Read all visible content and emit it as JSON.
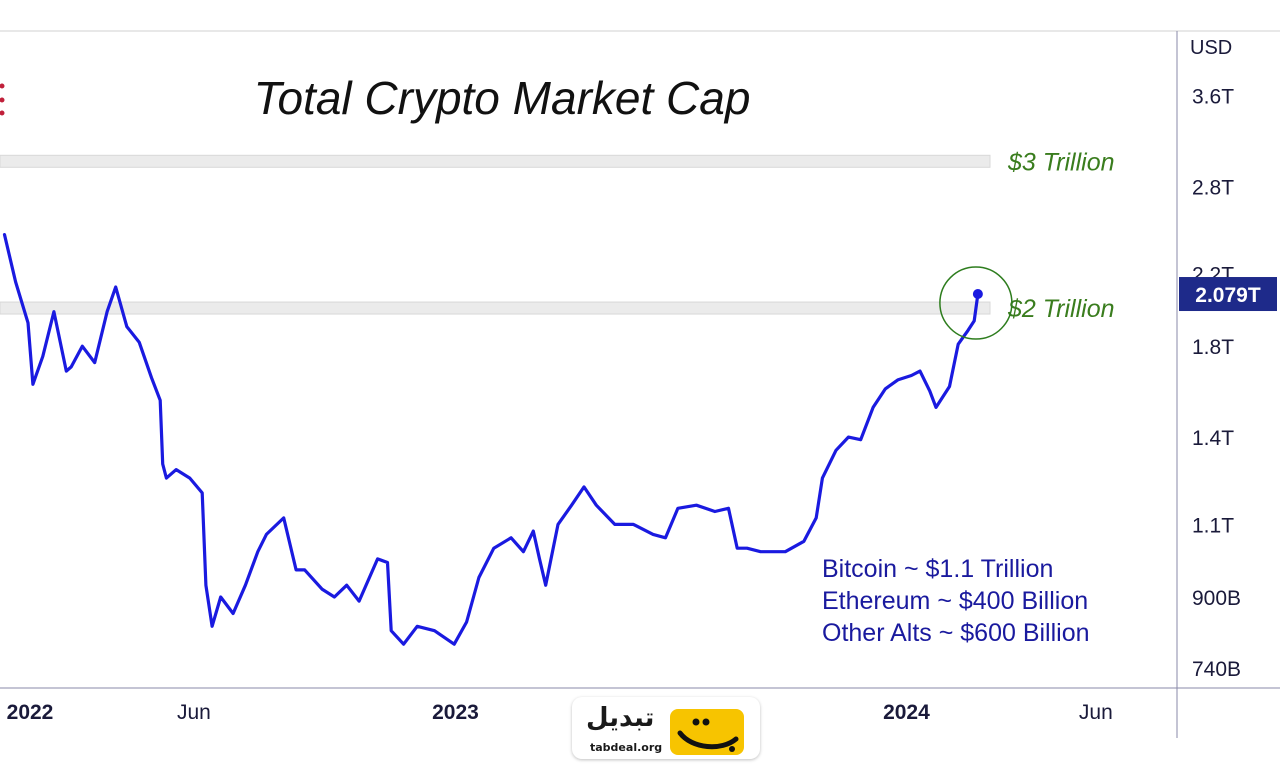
{
  "chart_data": {
    "type": "line",
    "title": "Total Crypto Market Cap",
    "currency": "USD",
    "y_scale": "log",
    "ylim": [
      700000000000,
      4300000000000
    ],
    "y_ticks": [
      {
        "label": "3.6T",
        "value": 3600000000000
      },
      {
        "label": "2.8T",
        "value": 2800000000000
      },
      {
        "label": "2.2T",
        "value": 2200000000000
      },
      {
        "label": "1.8T",
        "value": 1800000000000
      },
      {
        "label": "1.4T",
        "value": 1400000000000
      },
      {
        "label": "1.1T",
        "value": 1100000000000
      },
      {
        "label": "900B",
        "value": 900000000000
      },
      {
        "label": "740B",
        "value": 740000000000
      }
    ],
    "x_ticks": [
      {
        "label": "2022",
        "t": 2022.0,
        "bold": true
      },
      {
        "label": "Jun",
        "t": 2022.42,
        "bold": false
      },
      {
        "label": "2023",
        "t": 2023.0,
        "bold": true
      },
      {
        "label": "Jun",
        "t": 2023.42,
        "bold": false
      },
      {
        "label": "2024",
        "t": 2024.0,
        "bold": true
      },
      {
        "label": "Jun",
        "t": 2024.42,
        "bold": false
      }
    ],
    "xlim": [
      2021.99,
      2024.6
    ],
    "last_value_label": "2.079T",
    "last_value": 2079000000000,
    "colors": {
      "line": "#1a1ae0",
      "level_text": "#3a7d1e",
      "annotation": "#1a1a9e",
      "price_tag": "#1e2a8a",
      "highlight_circle": "#2e7d1e"
    },
    "levels": [
      {
        "label": "$3 Trillion",
        "value": 3000000000000
      },
      {
        "label": "$2 Trillion",
        "value": 2000000000000
      }
    ],
    "annotations": [
      "Bitcoin ~ $1.1 Trillion",
      "Ethereum ~ $400 Billion",
      "Other Alts ~ $600 Billion"
    ],
    "series": [
      {
        "values": [
          [
            "2022-01-01",
            2.45
          ],
          [
            "2022-01-10",
            2.15
          ],
          [
            "2022-01-20",
            1.92
          ],
          [
            "2022-01-24",
            1.62
          ],
          [
            "2022-02-01",
            1.75
          ],
          [
            "2022-02-10",
            1.98
          ],
          [
            "2022-02-20",
            1.68
          ],
          [
            "2022-02-24",
            1.7
          ],
          [
            "2022-03-05",
            1.8
          ],
          [
            "2022-03-15",
            1.72
          ],
          [
            "2022-03-25",
            1.98
          ],
          [
            "2022-04-01",
            2.12
          ],
          [
            "2022-04-10",
            1.9
          ],
          [
            "2022-04-20",
            1.82
          ],
          [
            "2022-04-30",
            1.65
          ],
          [
            "2022-05-07",
            1.55
          ],
          [
            "2022-05-09",
            1.3
          ],
          [
            "2022-05-12",
            1.25
          ],
          [
            "2022-05-20",
            1.28
          ],
          [
            "2022-05-31",
            1.25
          ],
          [
            "2022-06-10",
            1.2
          ],
          [
            "2022-06-13",
            0.93
          ],
          [
            "2022-06-18",
            0.83
          ],
          [
            "2022-06-25",
            0.9
          ],
          [
            "2022-07-05",
            0.86
          ],
          [
            "2022-07-15",
            0.93
          ],
          [
            "2022-07-25",
            1.02
          ],
          [
            "2022-08-01",
            1.07
          ],
          [
            "2022-08-15",
            1.12
          ],
          [
            "2022-08-25",
            0.97
          ],
          [
            "2022-09-01",
            0.97
          ],
          [
            "2022-09-15",
            0.92
          ],
          [
            "2022-09-25",
            0.9
          ],
          [
            "2022-10-05",
            0.93
          ],
          [
            "2022-10-15",
            0.89
          ],
          [
            "2022-10-30",
            1.0
          ],
          [
            "2022-11-07",
            0.99
          ],
          [
            "2022-11-10",
            0.82
          ],
          [
            "2022-11-20",
            0.79
          ],
          [
            "2022-12-01",
            0.83
          ],
          [
            "2022-12-15",
            0.82
          ],
          [
            "2022-12-31",
            0.79
          ],
          [
            "2023-01-10",
            0.84
          ],
          [
            "2023-01-20",
            0.95
          ],
          [
            "2023-02-01",
            1.03
          ],
          [
            "2023-02-15",
            1.06
          ],
          [
            "2023-02-25",
            1.02
          ],
          [
            "2023-03-05",
            1.08
          ],
          [
            "2023-03-10",
            1.0
          ],
          [
            "2023-03-15",
            0.93
          ],
          [
            "2023-03-25",
            1.1
          ],
          [
            "2023-04-05",
            1.16
          ],
          [
            "2023-04-15",
            1.22
          ],
          [
            "2023-04-25",
            1.16
          ],
          [
            "2023-05-10",
            1.1
          ],
          [
            "2023-05-25",
            1.1
          ],
          [
            "2023-06-10",
            1.07
          ],
          [
            "2023-06-20",
            1.06
          ],
          [
            "2023-06-30",
            1.15
          ],
          [
            "2023-07-15",
            1.16
          ],
          [
            "2023-07-30",
            1.14
          ],
          [
            "2023-08-10",
            1.15
          ],
          [
            "2023-08-17",
            1.03
          ],
          [
            "2023-08-25",
            1.03
          ],
          [
            "2023-09-05",
            1.02
          ],
          [
            "2023-09-15",
            1.02
          ],
          [
            "2023-09-25",
            1.02
          ],
          [
            "2023-10-10",
            1.05
          ],
          [
            "2023-10-20",
            1.12
          ],
          [
            "2023-10-25",
            1.25
          ],
          [
            "2023-11-05",
            1.35
          ],
          [
            "2023-11-15",
            1.4
          ],
          [
            "2023-11-25",
            1.39
          ],
          [
            "2023-12-05",
            1.52
          ],
          [
            "2023-12-15",
            1.6
          ],
          [
            "2023-12-25",
            1.64
          ],
          [
            "2024-01-05",
            1.66
          ],
          [
            "2024-01-12",
            1.68
          ],
          [
            "2024-01-20",
            1.59
          ],
          [
            "2024-01-25",
            1.52
          ],
          [
            "2024-02-05",
            1.61
          ],
          [
            "2024-02-12",
            1.81
          ],
          [
            "2024-02-20",
            1.88
          ],
          [
            "2024-02-25",
            1.93
          ],
          [
            "2024-02-28",
            2.079
          ]
        ]
      }
    ]
  },
  "logo": {
    "text": "تبدیل",
    "url": "tabdeal.org"
  }
}
